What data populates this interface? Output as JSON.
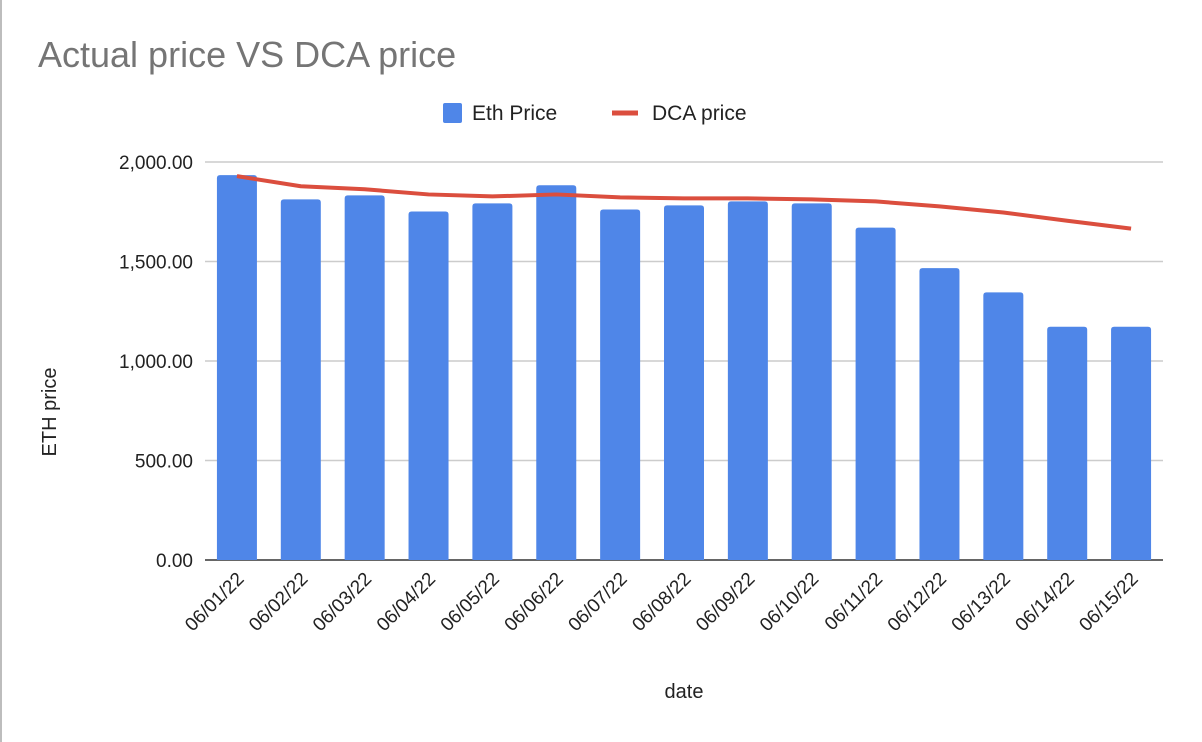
{
  "chart_data": {
    "type": "bar",
    "title": "Actual price VS DCA price",
    "xlabel": "date",
    "ylabel": "ETH price",
    "ylim": [
      0,
      2000
    ],
    "yticks": [
      "0.00",
      "500.00",
      "1,000.00",
      "1,500.00",
      "2,000.00"
    ],
    "ytick_values": [
      0,
      500,
      1000,
      1500,
      2000
    ],
    "grid": true,
    "legend_position": "top",
    "categories": [
      "06/01/22",
      "06/02/22",
      "06/03/22",
      "06/04/22",
      "06/05/22",
      "06/06/22",
      "06/07/22",
      "06/08/22",
      "06/09/22",
      "06/10/22",
      "06/11/22",
      "06/12/22",
      "06/13/22",
      "06/14/22",
      "06/15/22"
    ],
    "series": [
      {
        "name": "Eth Price",
        "type": "bar",
        "color": "#4f86e8",
        "values": [
          1934,
          1812,
          1832,
          1751,
          1792,
          1883,
          1761,
          1782,
          1802,
          1792,
          1670,
          1467,
          1345,
          1172,
          1172
        ]
      },
      {
        "name": "DCA price",
        "type": "line",
        "color": "#db4e3e",
        "values": [
          1929,
          1878,
          1863,
          1837,
          1827,
          1837,
          1822,
          1817,
          1817,
          1812,
          1802,
          1777,
          1746,
          1705,
          1665
        ]
      }
    ]
  }
}
